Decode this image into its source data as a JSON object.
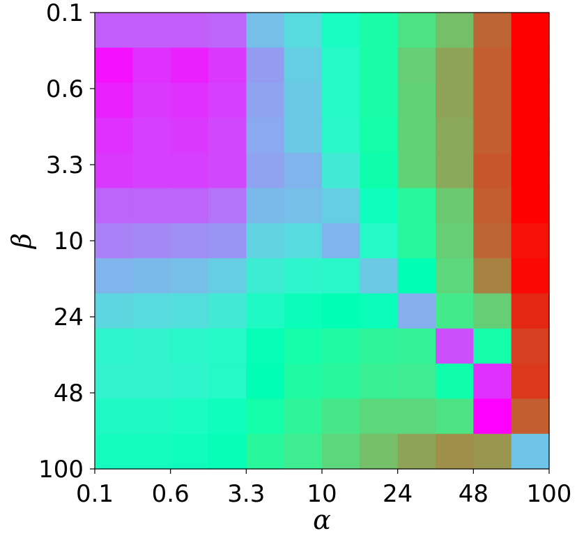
{
  "chart_data": {
    "type": "heatmap",
    "title": "",
    "xlabel": "α",
    "ylabel": "β",
    "x_tick_labels": [
      "0.1",
      "0.6",
      "3.3",
      "10",
      "24",
      "48",
      "100"
    ],
    "y_tick_labels": [
      "0.1",
      "0.6",
      "3.3",
      "10",
      "24",
      "48",
      "100"
    ],
    "colormap": "rainbow",
    "value_range": [
      0,
      1
    ],
    "grid": false,
    "values": [
      [
        0.12,
        0.12,
        0.12,
        0.13,
        0.27,
        0.33,
        0.45,
        0.55,
        0.65,
        0.73,
        0.87,
        1.0
      ],
      [
        0.02,
        0.06,
        0.04,
        0.07,
        0.21,
        0.3,
        0.43,
        0.55,
        0.7,
        0.78,
        0.88,
        1.0
      ],
      [
        0.04,
        0.07,
        0.06,
        0.08,
        0.22,
        0.29,
        0.43,
        0.55,
        0.69,
        0.78,
        0.88,
        1.0
      ],
      [
        0.06,
        0.08,
        0.07,
        0.09,
        0.23,
        0.29,
        0.42,
        0.54,
        0.69,
        0.77,
        0.88,
        1.0
      ],
      [
        0.07,
        0.08,
        0.08,
        0.09,
        0.22,
        0.25,
        0.37,
        0.53,
        0.69,
        0.77,
        0.89,
        1.0
      ],
      [
        0.13,
        0.13,
        0.13,
        0.15,
        0.26,
        0.27,
        0.3,
        0.47,
        0.58,
        0.71,
        0.88,
        1.0
      ],
      [
        0.17,
        0.18,
        0.19,
        0.2,
        0.31,
        0.33,
        0.25,
        0.43,
        0.58,
        0.7,
        0.87,
        0.98
      ],
      [
        0.25,
        0.26,
        0.27,
        0.3,
        0.38,
        0.41,
        0.42,
        0.29,
        0.5,
        0.68,
        0.83,
        0.99
      ],
      [
        0.32,
        0.33,
        0.34,
        0.37,
        0.44,
        0.48,
        0.5,
        0.48,
        0.24,
        0.63,
        0.7,
        0.95
      ],
      [
        0.41,
        0.4,
        0.42,
        0.43,
        0.49,
        0.54,
        0.56,
        0.59,
        0.6,
        0.1,
        0.54,
        0.92
      ],
      [
        0.4,
        0.4,
        0.41,
        0.43,
        0.5,
        0.56,
        0.58,
        0.61,
        0.62,
        0.53,
        0.06,
        0.93
      ],
      [
        0.44,
        0.44,
        0.45,
        0.47,
        0.54,
        0.59,
        0.64,
        0.68,
        0.68,
        0.65,
        0.0,
        0.88
      ],
      [
        0.46,
        0.46,
        0.47,
        0.49,
        0.58,
        0.62,
        0.68,
        0.73,
        0.78,
        0.81,
        0.8,
        0.28
      ]
    ]
  }
}
